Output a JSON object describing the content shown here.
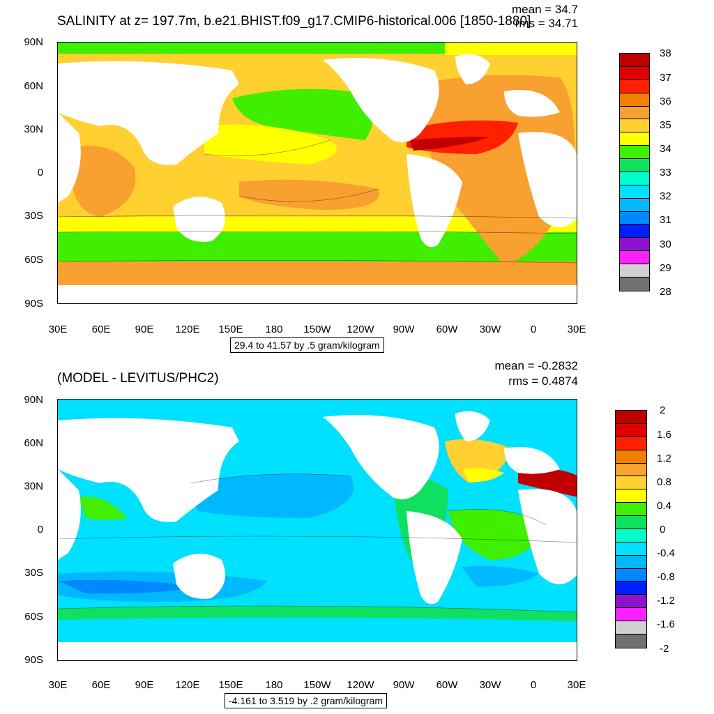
{
  "panel1": {
    "title": "SALINITY at z= 197.7m, b.e21.BHIST.f09_g17.CMIP6-historical.006 [1850-1880]",
    "mean": "mean = 34.7",
    "rms": "rms = 34.71",
    "range": "29.4 to 41.57 by .5 gram/kilogram",
    "y_ticks": [
      "90N",
      "60N",
      "30N",
      "0",
      "30S",
      "60S",
      "90S"
    ],
    "x_ticks": [
      "30E",
      "60E",
      "90E",
      "120E",
      "150E",
      "180",
      "150W",
      "120W",
      "90W",
      "60W",
      "30W",
      "0",
      "30E"
    ],
    "colorbar": {
      "labels": [
        "38",
        "37",
        "36",
        "35",
        "34",
        "33",
        "32",
        "31",
        "30",
        "29",
        "28"
      ],
      "colors": [
        "#c00000",
        "#e00000",
        "#ff2000",
        "#f08000",
        "#f8a030",
        "#ffd030",
        "#ffff00",
        "#40ee00",
        "#10e060",
        "#00ffcc",
        "#00e0ff",
        "#00b8ff",
        "#0088ff",
        "#0020ff",
        "#9010d0",
        "#ff20ff",
        "#d0d0d0",
        "#707070"
      ]
    }
  },
  "panel2": {
    "title": "(MODEL - LEVITUS/PHC2)",
    "mean": "mean = -0.2832",
    "rms": "rms = 0.4874",
    "range": "-4.161 to 3.519 by .2 gram/kilogram",
    "y_ticks": [
      "90N",
      "60N",
      "30N",
      "0",
      "30S",
      "60S",
      "90S"
    ],
    "x_ticks": [
      "30E",
      "60E",
      "90E",
      "120E",
      "150E",
      "180",
      "150W",
      "120W",
      "90W",
      "60W",
      "30W",
      "0",
      "30E"
    ],
    "colorbar": {
      "labels": [
        "2",
        "1.6",
        "1.2",
        "0.8",
        "0.4",
        "0",
        "-0.4",
        "-0.8",
        "-1.2",
        "-1.6",
        "-2"
      ],
      "colors": [
        "#c00000",
        "#e00000",
        "#ff2000",
        "#f08000",
        "#f8a030",
        "#ffd030",
        "#ffff00",
        "#40ee00",
        "#10e060",
        "#00ffcc",
        "#00e0ff",
        "#00b8ff",
        "#0088ff",
        "#0020ff",
        "#9010d0",
        "#ff20ff",
        "#d0d0d0",
        "#707070"
      ]
    }
  }
}
